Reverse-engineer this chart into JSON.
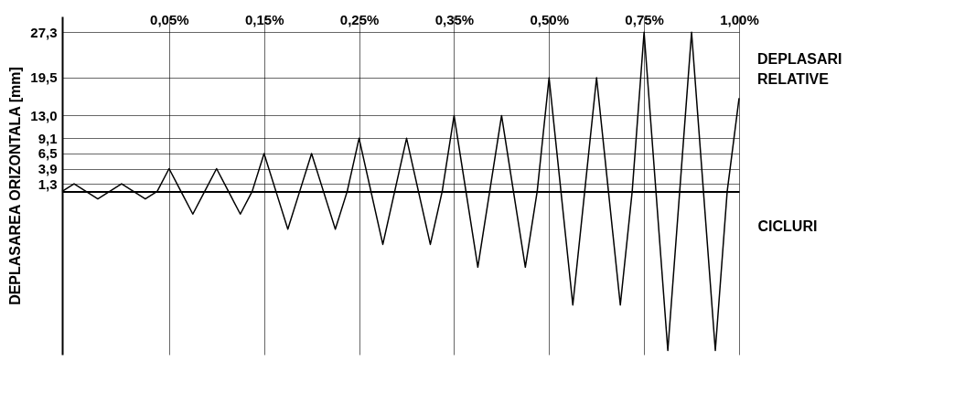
{
  "chart_data": {
    "type": "line",
    "xlabel": "CICLURI",
    "ylabel": "DEPLASAREA ORIZONTALA [mm]",
    "annotations": [
      "DEPLASARI RELATIVE"
    ],
    "categories": [
      null,
      null,
      null,
      null,
      null,
      null,
      null,
      null,
      null,
      "0,05%",
      null,
      null,
      null,
      null,
      null,
      null,
      null,
      "0,15%",
      null,
      null,
      null,
      null,
      null,
      null,
      null,
      "0,25%",
      null,
      null,
      null,
      null,
      null,
      null,
      null,
      "0,35%",
      null,
      null,
      null,
      null,
      null,
      null,
      null,
      "0,50%",
      null,
      null,
      null,
      null,
      null,
      null,
      null,
      "0,75%",
      null,
      null,
      null,
      null,
      null,
      null,
      null,
      "1,00%"
    ],
    "series": [
      {
        "color": "#000000",
        "values": [
          0,
          1.3,
          0,
          -1.3,
          0,
          1.3,
          0,
          -1.3,
          0,
          3.9,
          0,
          -3.9,
          0,
          3.9,
          0,
          -3.9,
          0,
          6.5,
          0,
          -6.5,
          0,
          6.5,
          0,
          -6.5,
          0,
          9.1,
          0,
          -9.1,
          0,
          9.1,
          0,
          -9.1,
          0,
          13.0,
          0,
          -13.0,
          0,
          13.0,
          0,
          -13.0,
          0,
          19.5,
          0,
          -19.5,
          0,
          19.5,
          0,
          -19.5,
          0,
          27.3,
          0,
          -27.3,
          0,
          27.3,
          0,
          -27.3,
          0,
          16
        ]
      }
    ],
    "ylim": [
      -28,
      30
    ],
    "yticks": [
      {
        "value": 1.3,
        "label": "1,3"
      },
      {
        "value": 3.9,
        "label": "3,9"
      },
      {
        "value": 6.5,
        "label": "6,5"
      },
      {
        "value": 9.1,
        "label": "9,1"
      },
      {
        "value": 13.0,
        "label": "13,0"
      },
      {
        "value": 19.5,
        "label": "19,5"
      },
      {
        "value": 27.3,
        "label": "27,3"
      }
    ],
    "grid": true,
    "marker": "none",
    "line_style": "solid"
  }
}
